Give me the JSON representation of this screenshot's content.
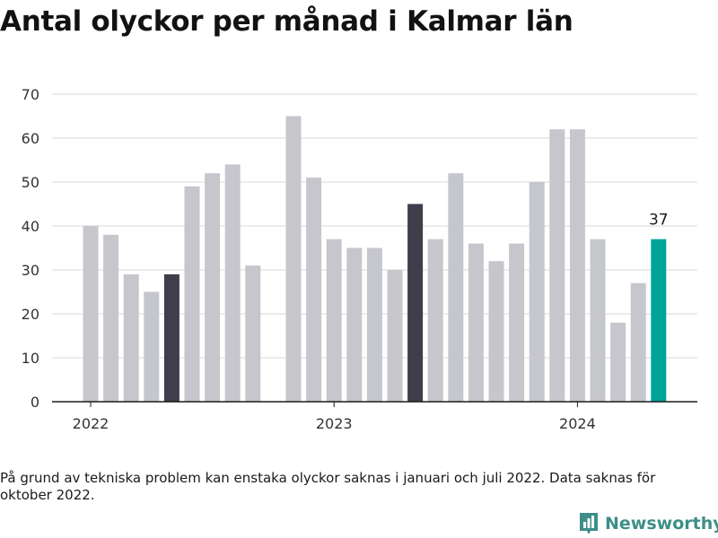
{
  "colors": {
    "bar_default": "#c6c6cd",
    "bar_highlight_may": "#3f3e4a",
    "bar_latest": "#00a499",
    "gridline": "#d9d9d9",
    "axis": "#1a1a1a",
    "brand": "#3d8f88"
  },
  "footer": {
    "note": "På grund av tekniska problem kan enstaka olyckor saknas i januari och juli 2022. Data saknas för oktober 2022.",
    "brand_name": "Newsworthy",
    "brand_icon": "newsworthy-logo-icon"
  },
  "chart_data": {
    "type": "bar",
    "title": "Antal olyckor per månad i Kalmar län",
    "xlabel": "",
    "ylabel": "",
    "ylim": [
      0,
      70
    ],
    "yticks": [
      0,
      10,
      20,
      30,
      40,
      50,
      60,
      70
    ],
    "xtick_labels": [
      {
        "label": "2022",
        "at": "2022-01"
      },
      {
        "label": "2023",
        "at": "2023-01"
      },
      {
        "label": "2024",
        "at": "2024-01"
      }
    ],
    "grid": true,
    "annotation": {
      "at": "2024-05",
      "text": "37"
    },
    "categories": [
      "2022-01",
      "2022-02",
      "2022-03",
      "2022-04",
      "2022-05",
      "2022-06",
      "2022-07",
      "2022-08",
      "2022-09",
      "2022-10",
      "2022-11",
      "2022-12",
      "2023-01",
      "2023-02",
      "2023-03",
      "2023-04",
      "2023-05",
      "2023-06",
      "2023-07",
      "2023-08",
      "2023-09",
      "2023-10",
      "2023-11",
      "2023-12",
      "2024-01",
      "2024-02",
      "2024-03",
      "2024-04",
      "2024-05"
    ],
    "values": [
      40,
      38,
      29,
      25,
      29,
      49,
      52,
      54,
      31,
      null,
      65,
      51,
      37,
      35,
      35,
      30,
      45,
      37,
      52,
      36,
      32,
      36,
      50,
      62,
      62,
      37,
      18,
      27,
      37
    ],
    "highlight": {
      "2022-05": "bar_highlight_may",
      "2023-05": "bar_highlight_may",
      "2024-05": "bar_latest"
    }
  }
}
